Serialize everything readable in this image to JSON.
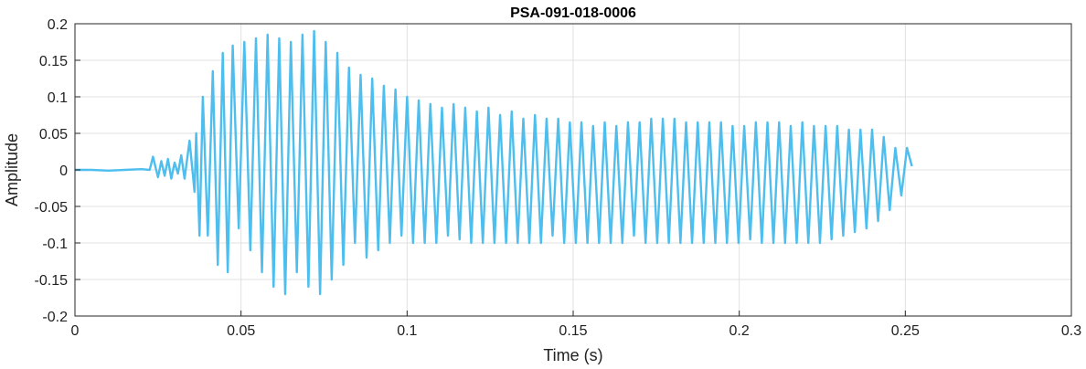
{
  "chart_data": {
    "type": "line",
    "title": "PSA-091-018-0006",
    "xlabel": "Time (s)",
    "ylabel": "Amplitude",
    "xlim": [
      0,
      0.3
    ],
    "ylim": [
      -0.2,
      0.2
    ],
    "x_ticks": [
      0,
      0.05,
      0.1,
      0.15,
      0.2,
      0.25,
      0.3
    ],
    "x_tick_labels": [
      "0",
      "0.05",
      "0.1",
      "0.15",
      "0.2",
      "0.25",
      "0.3"
    ],
    "y_ticks": [
      -0.2,
      -0.15,
      -0.1,
      -0.05,
      0,
      0.05,
      0.1,
      0.15,
      0.2
    ],
    "y_tick_labels": [
      "-0.2",
      "-0.15",
      "-0.1",
      "-0.05",
      "0",
      "0.05",
      "0.1",
      "0.15",
      "0.2"
    ],
    "grid": true,
    "series": [
      {
        "color": "#4DBEEE",
        "x": [
          0.0,
          0.005,
          0.01,
          0.015,
          0.02,
          0.0225,
          0.0235,
          0.025,
          0.026,
          0.027,
          0.028,
          0.029,
          0.03,
          0.031,
          0.032,
          0.033,
          0.0345,
          0.036,
          0.0365,
          0.0375,
          0.0385,
          0.04,
          0.0415,
          0.043,
          0.0445,
          0.046,
          0.0475,
          0.0493,
          0.051,
          0.0528,
          0.0545,
          0.0563,
          0.058,
          0.0598,
          0.0615,
          0.0633,
          0.065,
          0.0668,
          0.0685,
          0.0703,
          0.072,
          0.0738,
          0.0755,
          0.0773,
          0.079,
          0.0808,
          0.0825,
          0.0843,
          0.086,
          0.0878,
          0.0895,
          0.0913,
          0.093,
          0.0948,
          0.0965,
          0.0983,
          0.1,
          0.1018,
          0.1035,
          0.1053,
          0.107,
          0.1088,
          0.1105,
          0.1123,
          0.114,
          0.1158,
          0.1175,
          0.1193,
          0.121,
          0.1228,
          0.1245,
          0.1263,
          0.128,
          0.1298,
          0.1315,
          0.1333,
          0.135,
          0.1368,
          0.1385,
          0.1403,
          0.142,
          0.1438,
          0.1455,
          0.1473,
          0.149,
          0.1508,
          0.1525,
          0.1543,
          0.156,
          0.1578,
          0.1595,
          0.1613,
          0.163,
          0.1648,
          0.1665,
          0.1683,
          0.17,
          0.1718,
          0.1735,
          0.1753,
          0.177,
          0.1788,
          0.1805,
          0.1823,
          0.184,
          0.1858,
          0.1875,
          0.1893,
          0.191,
          0.1928,
          0.1945,
          0.1963,
          0.198,
          0.1998,
          0.2015,
          0.2033,
          0.205,
          0.2068,
          0.2085,
          0.2103,
          0.212,
          0.2138,
          0.2155,
          0.2173,
          0.219,
          0.2208,
          0.2225,
          0.2243,
          0.226,
          0.2278,
          0.2295,
          0.2313,
          0.233,
          0.2348,
          0.2365,
          0.2383,
          0.24,
          0.2418,
          0.2435,
          0.2453,
          0.247,
          0.2488,
          0.2505,
          0.252
        ],
        "y": [
          0.0,
          0.0,
          -0.001,
          0.0,
          0.001,
          0.0,
          0.018,
          -0.01,
          0.012,
          -0.008,
          0.015,
          -0.012,
          0.01,
          -0.005,
          0.02,
          -0.012,
          0.04,
          -0.03,
          0.05,
          -0.09,
          0.1,
          -0.09,
          0.135,
          -0.13,
          0.16,
          -0.14,
          0.17,
          -0.08,
          0.175,
          -0.11,
          0.18,
          -0.14,
          0.185,
          -0.16,
          0.18,
          -0.17,
          0.175,
          -0.14,
          0.185,
          -0.16,
          0.19,
          -0.17,
          0.175,
          -0.15,
          0.16,
          -0.13,
          0.14,
          -0.1,
          0.13,
          -0.12,
          0.125,
          -0.11,
          0.115,
          -0.1,
          0.11,
          -0.09,
          0.1,
          -0.1,
          0.095,
          -0.1,
          0.09,
          -0.1,
          0.085,
          -0.09,
          0.09,
          -0.095,
          0.085,
          -0.1,
          0.08,
          -0.1,
          0.085,
          -0.1,
          0.075,
          -0.1,
          0.08,
          -0.1,
          0.07,
          -0.1,
          0.075,
          -0.1,
          0.07,
          -0.09,
          0.07,
          -0.1,
          0.065,
          -0.1,
          0.065,
          -0.1,
          0.06,
          -0.1,
          0.065,
          -0.1,
          0.06,
          -0.1,
          0.065,
          -0.09,
          0.065,
          -0.1,
          0.07,
          -0.1,
          0.07,
          -0.1,
          0.07,
          -0.1,
          0.065,
          -0.1,
          0.065,
          -0.1,
          0.065,
          -0.1,
          0.065,
          -0.1,
          0.06,
          -0.1,
          0.06,
          -0.095,
          0.065,
          -0.1,
          0.065,
          -0.1,
          0.065,
          -0.1,
          0.06,
          -0.1,
          0.065,
          -0.1,
          0.06,
          -0.1,
          0.06,
          -0.095,
          0.06,
          -0.09,
          0.055,
          -0.085,
          0.055,
          -0.08,
          0.055,
          -0.07,
          0.045,
          -0.055,
          0.03,
          -0.035,
          0.03,
          0.005
        ]
      }
    ]
  }
}
